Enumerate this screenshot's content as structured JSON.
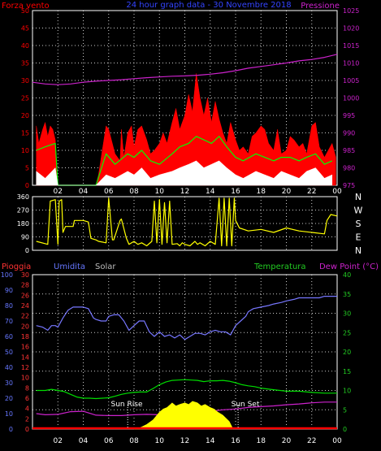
{
  "header": {
    "left_label": "Forza vento",
    "title": "24 hour graph data - 30 Novembre 2018",
    "right_label": "Pressione"
  },
  "direction_labels": [
    "N",
    "W",
    "S",
    "E",
    "N"
  ],
  "lower_header": {
    "rain": "Pioggia",
    "humidity": "Umidita",
    "solar": "Solar",
    "temperature": "Temperatura",
    "dewpoint": "Dew Point (°C)"
  },
  "annotations": {
    "sunrise": "Sun Rise",
    "sunset": "Sun Set"
  },
  "colors": {
    "wind_gust": "#ff0000",
    "wind_avg": "#00ff00",
    "wind_min": "#ffffff",
    "pressure": "#cc22cc",
    "direction": "#ffff00",
    "humidity": "#7777ff",
    "temperature": "#00dd00",
    "dewpoint": "#cc22cc",
    "solar": "#ffff00",
    "rain": "#ff0000",
    "rain_axis": "#ff3333",
    "humidity_axis": "#6677ff",
    "temp_axis": "#22cc22",
    "grid": "#ffffff"
  },
  "chart_data": [
    {
      "type": "line",
      "name": "wind_pressure",
      "x_ticks": [
        "02",
        "04",
        "06",
        "08",
        "10",
        "12",
        "14",
        "16",
        "18",
        "20",
        "22",
        "00"
      ],
      "xlim": [
        0,
        24
      ],
      "ylim_left": [
        0,
        50
      ],
      "yticks_left": [
        0,
        5,
        10,
        15,
        20,
        25,
        30,
        35,
        40,
        45,
        50
      ],
      "ylim_right": [
        975,
        1025
      ],
      "yticks_right": [
        975,
        980,
        985,
        990,
        995,
        1000,
        1005,
        1010,
        1015,
        1020,
        1025
      ],
      "series": [
        {
          "name": "Forza vento",
          "axis": "left",
          "color_key": "wind_gust",
          "x": [
            0.3,
            0.5,
            0.8,
            1.0,
            1.2,
            1.4,
            1.6,
            1.8,
            2.0,
            2.5,
            3.0,
            3.5,
            4.0,
            4.2,
            4.4,
            5.0,
            5.2,
            5.5,
            5.8,
            6.0,
            6.5,
            6.9,
            7.0,
            7.2,
            7.5,
            7.8,
            8.0,
            8.3,
            8.6,
            9.0,
            9.3,
            9.6,
            10.0,
            10.3,
            10.6,
            11.0,
            11.3,
            11.6,
            12.0,
            12.3,
            12.6,
            12.9,
            13.2,
            13.5,
            13.8,
            14.1,
            14.4,
            14.7,
            15.0,
            15.3,
            15.6,
            16.0,
            16.3,
            16.6,
            17.0,
            17.3,
            17.6,
            18.0,
            18.3,
            18.6,
            19.0,
            19.3,
            19.6,
            20.0,
            20.3,
            20.6,
            21.0,
            21.3,
            21.6,
            22.0,
            22.3,
            22.6,
            23.0,
            23.3,
            23.6,
            23.9
          ],
          "y": [
            17,
            12,
            16,
            18,
            14,
            17,
            16,
            13,
            0,
            0,
            0,
            0,
            0,
            0,
            0,
            0,
            3,
            10,
            17,
            16,
            9,
            7,
            16,
            8,
            15,
            17,
            11,
            16,
            17,
            13,
            9,
            10,
            12,
            15,
            12,
            18,
            22,
            16,
            20,
            26,
            21,
            32,
            25,
            20,
            25,
            18,
            24,
            19,
            15,
            12,
            18,
            13,
            10,
            11,
            9,
            14,
            15,
            17,
            16,
            12,
            10,
            16,
            9,
            10,
            14,
            13,
            11,
            12,
            9,
            17,
            18,
            11,
            8,
            10,
            12,
            8
          ]
        },
        {
          "name": "media",
          "axis": "left",
          "color_key": "wind_avg",
          "x": [
            0.3,
            1.0,
            1.8,
            2.0,
            4.4,
            5.0,
            5.8,
            6.5,
            7.5,
            8.0,
            8.6,
            9.3,
            10.0,
            11.0,
            11.6,
            12.3,
            12.9,
            13.5,
            14.1,
            14.7,
            15.3,
            16.0,
            16.6,
            17.6,
            18.3,
            19.0,
            19.6,
            20.3,
            21.0,
            21.6,
            22.3,
            23.0,
            23.6
          ],
          "y": [
            10,
            11,
            12,
            0,
            0,
            0,
            9,
            6,
            9,
            8,
            10,
            7,
            6,
            9,
            11,
            12,
            14,
            13,
            12,
            14,
            11,
            8,
            7,
            9,
            8,
            7,
            8,
            8,
            7,
            8,
            9,
            6,
            7
          ]
        },
        {
          "name": "minimo",
          "axis": "left",
          "color_key": "wind_min",
          "x": [
            0.3,
            1.0,
            1.8,
            2.0,
            4.4,
            5.0,
            5.8,
            6.5,
            7.5,
            8.0,
            8.6,
            9.3,
            10.0,
            11.0,
            11.6,
            12.3,
            12.9,
            13.5,
            14.1,
            14.7,
            15.3,
            16.0,
            16.6,
            17.6,
            18.3,
            19.0,
            19.6,
            20.3,
            21.0,
            21.6,
            22.3,
            23.0,
            23.6
          ],
          "y": [
            4,
            2,
            5,
            0,
            0,
            0,
            3,
            2,
            4,
            3,
            5,
            2,
            3,
            4,
            5,
            6,
            7,
            5,
            6,
            7,
            5,
            3,
            2,
            4,
            3,
            2,
            4,
            3,
            2,
            4,
            5,
            2,
            3
          ]
        },
        {
          "name": "Pressione",
          "axis": "right",
          "color_key": "pressure",
          "x": [
            0,
            1,
            2,
            3,
            4,
            5,
            6,
            7,
            8,
            9,
            10,
            11,
            12,
            13,
            14,
            15,
            16,
            17,
            18,
            19,
            20,
            21,
            22,
            23,
            24
          ],
          "y": [
            1004.5,
            1004,
            1003.8,
            1004,
            1004.5,
            1004.8,
            1005,
            1005.2,
            1005.5,
            1005.8,
            1006,
            1006.2,
            1006.3,
            1006.5,
            1006.8,
            1007.2,
            1007.8,
            1008.5,
            1009,
            1009.5,
            1010,
            1010.6,
            1011,
            1011.6,
            1012.5
          ]
        }
      ]
    },
    {
      "type": "line",
      "name": "wind_direction",
      "x_ticks": [
        "02",
        "04",
        "06",
        "08",
        "10",
        "12",
        "14",
        "16",
        "18",
        "20",
        "22",
        "00"
      ],
      "xlim": [
        0,
        24
      ],
      "ylim": [
        0,
        360
      ],
      "yticks": [
        0,
        90,
        180,
        270,
        360
      ],
      "series": [
        {
          "name": "direzione",
          "color_key": "direction",
          "x": [
            0.3,
            1.2,
            1.4,
            1.8,
            2.0,
            2.1,
            2.3,
            2.4,
            2.6,
            3.2,
            3.3,
            4.0,
            4.4,
            4.6,
            5.0,
            5.2,
            5.8,
            6.0,
            6.3,
            6.4,
            6.9,
            7.0,
            7.4,
            7.6,
            8.0,
            8.3,
            8.6,
            9.0,
            9.4,
            9.6,
            9.8,
            10.0,
            10.2,
            10.4,
            10.6,
            10.8,
            11.0,
            11.4,
            11.6,
            11.8,
            12.0,
            12.4,
            12.8,
            13.0,
            13.2,
            13.6,
            14.0,
            14.4,
            14.7,
            14.9,
            15.1,
            15.3,
            15.5,
            15.7,
            15.9,
            16.0,
            16.3,
            17.0,
            18.0,
            19.0,
            20.0,
            21.0,
            22.0,
            23.0,
            23.2,
            23.5,
            24.0
          ],
          "y": [
            60,
            40,
            330,
            340,
            40,
            330,
            340,
            120,
            160,
            160,
            200,
            200,
            190,
            80,
            70,
            60,
            50,
            350,
            70,
            70,
            200,
            210,
            80,
            40,
            60,
            40,
            50,
            30,
            60,
            330,
            50,
            340,
            40,
            320,
            50,
            330,
            40,
            45,
            30,
            50,
            40,
            30,
            60,
            40,
            50,
            30,
            60,
            40,
            350,
            30,
            350,
            30,
            350,
            30,
            350,
            200,
            150,
            130,
            140,
            120,
            150,
            130,
            120,
            110,
            200,
            240,
            230
          ]
        }
      ]
    },
    {
      "type": "line",
      "name": "temp_humidity_solar_rain",
      "x_ticks": [
        "02",
        "04",
        "06",
        "08",
        "10",
        "12",
        "14",
        "16",
        "18",
        "20",
        "22",
        "00"
      ],
      "xlim": [
        0,
        24
      ],
      "ylim_humidity": [
        0,
        100
      ],
      "yticks_humidity": [
        0,
        10,
        20,
        30,
        40,
        50,
        60,
        70,
        80,
        90,
        100
      ],
      "ylim_rain": [
        0,
        30
      ],
      "yticks_rain": [
        0,
        2,
        4,
        6,
        8,
        10,
        12,
        14,
        16,
        18,
        20,
        22,
        24,
        26,
        28,
        30
      ],
      "ylim_temp": [
        0,
        40
      ],
      "yticks_temp": [
        0,
        5,
        10,
        15,
        20,
        25,
        30,
        35,
        40
      ],
      "series": [
        {
          "name": "Umidita",
          "color_key": "humidity",
          "x": [
            0.3,
            0.8,
            1.2,
            1.5,
            1.8,
            2.0,
            2.4,
            2.8,
            3.2,
            3.6,
            4.0,
            4.4,
            4.8,
            5.0,
            5.4,
            5.8,
            6.0,
            6.4,
            6.8,
            7.2,
            7.6,
            8.0,
            8.4,
            8.8,
            9.2,
            9.6,
            10.0,
            10.4,
            10.8,
            11.2,
            11.6,
            12.0,
            12.4,
            12.8,
            13.2,
            13.6,
            14.0,
            14.4,
            14.8,
            15.2,
            15.6,
            16.0,
            16.4,
            16.8,
            17.0,
            17.4,
            18.0,
            18.6,
            19.0,
            19.6,
            20.0,
            20.6,
            21.0,
            21.6,
            22.0,
            22.6,
            23.0,
            23.6,
            24.0
          ],
          "y": [
            67,
            66,
            64,
            67,
            67,
            66,
            72,
            77,
            79,
            79,
            79,
            78,
            72,
            71,
            70,
            70,
            73,
            74,
            74,
            70,
            64,
            67,
            70,
            70,
            63,
            60,
            63,
            60,
            61,
            59,
            61,
            58,
            60,
            62,
            62,
            61,
            63,
            64,
            63,
            63,
            61,
            67,
            70,
            73,
            76,
            78,
            79,
            80,
            81,
            82,
            83,
            84,
            85,
            85,
            85,
            85,
            86,
            86,
            86
          ]
        },
        {
          "name": "Temperatura",
          "color_key": "temperature",
          "x": [
            0.3,
            1.0,
            1.5,
            2.0,
            2.5,
            3.0,
            3.5,
            4.0,
            4.5,
            5.0,
            5.5,
            6.0,
            6.5,
            7.0,
            7.5,
            8.0,
            8.5,
            9.0,
            9.5,
            10.0,
            10.5,
            11.0,
            11.5,
            12.0,
            12.5,
            13.0,
            13.5,
            14.0,
            14.5,
            15.0,
            15.5,
            16.0,
            16.5,
            17.0,
            17.5,
            18.0,
            19.0,
            20.0,
            21.0,
            22.0,
            23.0,
            24.0
          ],
          "y": [
            10,
            10,
            10.3,
            10,
            9.7,
            9,
            8.3,
            8,
            8,
            7.9,
            8,
            8.1,
            8.5,
            9,
            9.3,
            9.5,
            9.6,
            9.6,
            10.5,
            11.5,
            12.2,
            12.6,
            12.7,
            12.8,
            12.7,
            12.6,
            12.3,
            12.5,
            12.5,
            12.6,
            12.4,
            12,
            11.5,
            11.2,
            11,
            10.6,
            10.2,
            9.8,
            9.8,
            9.5,
            9.3,
            9.3
          ]
        },
        {
          "name": "Dew Point",
          "color_key": "dewpoint",
          "x": [
            0.3,
            1.0,
            2.0,
            3.0,
            4.0,
            5.0,
            6.0,
            7.0,
            8.0,
            9.0,
            10.0,
            11.0,
            12.0,
            13.0,
            14.0,
            15.0,
            16.0,
            17.0,
            18.0,
            19.0,
            20.0,
            21.0,
            22.0,
            23.0,
            24.0
          ],
          "y": [
            4,
            3.7,
            3.8,
            4.5,
            4.6,
            3.6,
            3.5,
            3.5,
            3.7,
            3.8,
            3.7,
            3.8,
            3.9,
            4.2,
            4.6,
            5,
            5.2,
            5.6,
            5.8,
            6,
            6.3,
            6.5,
            6.8,
            7,
            7
          ]
        },
        {
          "name": "Solar",
          "color_key": "solar",
          "axis": "humidity",
          "x": [
            8.0,
            8.5,
            9.0,
            9.5,
            10.0,
            10.3,
            10.6,
            11.0,
            11.3,
            11.6,
            12.0,
            12.3,
            12.6,
            13.0,
            13.3,
            13.6,
            14.0,
            14.3,
            14.6,
            15.0,
            15.5,
            15.8
          ],
          "y": [
            0,
            1,
            3,
            6,
            11,
            13,
            14,
            17,
            15,
            16,
            17,
            16,
            18,
            17,
            15,
            16,
            14,
            13,
            11,
            9,
            5,
            0
          ]
        },
        {
          "name": "Pioggia",
          "color_key": "rain",
          "axis": "rain",
          "x": [
            0,
            24
          ],
          "y": [
            0,
            0
          ]
        }
      ],
      "events": [
        {
          "label": "Sun Rise",
          "x": 7.5
        },
        {
          "label": "Sun Set",
          "x": 16.2
        }
      ]
    }
  ]
}
